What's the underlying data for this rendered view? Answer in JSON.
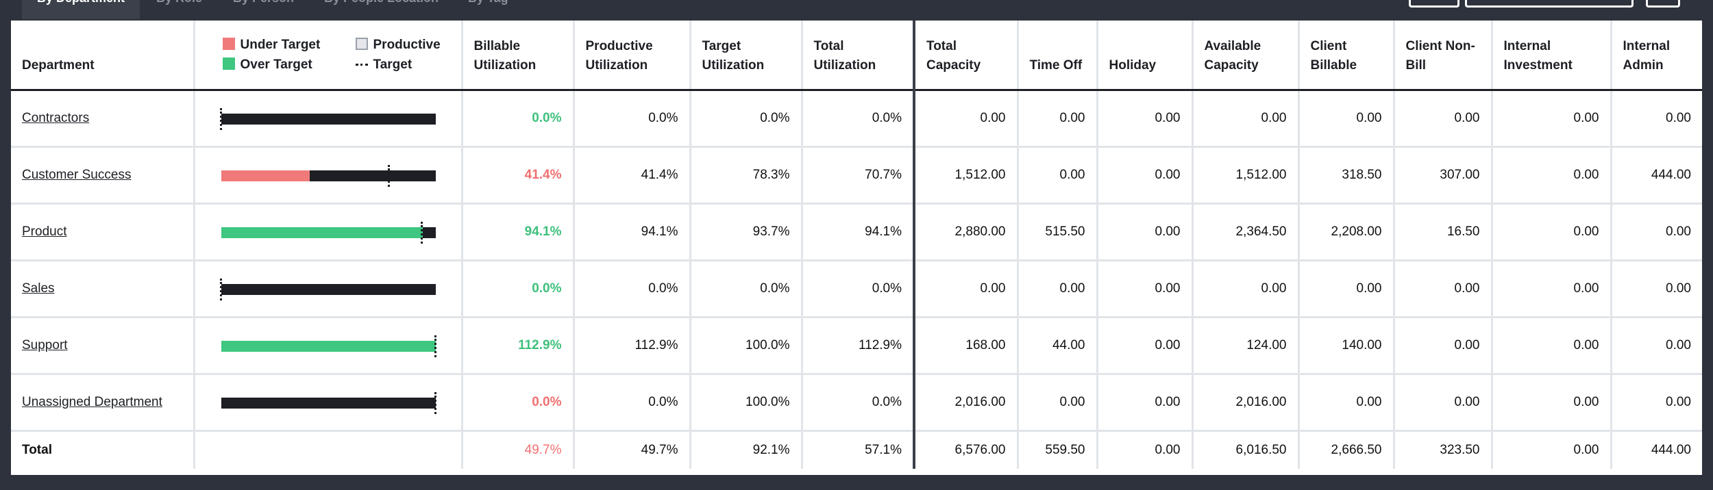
{
  "tabs": [
    "By Department",
    "By Role",
    "By Person",
    "By People Location",
    "By Tag"
  ],
  "colors": {
    "under": "#f07a7a",
    "over": "#3fc781",
    "productive": "#e4e6ea",
    "bar_base": "#1d1f24"
  },
  "legend": {
    "under": "Under Target",
    "productive": "Productive",
    "over": "Over Target",
    "target": "Target"
  },
  "headers": {
    "department": "Department",
    "billable": "Billable Utilization",
    "productive": "Productive Utilization",
    "target": "Target Utilization",
    "total_util": "Total Utilization",
    "total_cap": "Total Capacity",
    "time_off": "Time Off",
    "holiday": "Holiday",
    "avail": "Available Capacity",
    "client_bill": "Client Billable",
    "client_nonbill": "Client Non-Bill",
    "internal_inv": "Internal Investment",
    "internal_admin": "Internal Admin"
  },
  "rows": [
    {
      "name": "Contractors",
      "billable": "0.0%",
      "status": "over",
      "fill_pct": 0,
      "target_pct": 0,
      "productive": "0.0%",
      "target": "0.0%",
      "total_util": "0.0%",
      "total_cap": "0.00",
      "time_off": "0.00",
      "holiday": "0.00",
      "avail": "0.00",
      "client_bill": "0.00",
      "client_nonbill": "0.00",
      "internal_inv": "0.00",
      "internal_admin": "0.00"
    },
    {
      "name": "Customer Success",
      "billable": "41.4%",
      "status": "under",
      "fill_pct": 41.4,
      "target_pct": 78.3,
      "productive": "41.4%",
      "target": "78.3%",
      "total_util": "70.7%",
      "total_cap": "1,512.00",
      "time_off": "0.00",
      "holiday": "0.00",
      "avail": "1,512.00",
      "client_bill": "318.50",
      "client_nonbill": "307.00",
      "internal_inv": "0.00",
      "internal_admin": "444.00"
    },
    {
      "name": "Product",
      "billable": "94.1%",
      "status": "over",
      "fill_pct": 94.1,
      "target_pct": 93.7,
      "productive": "94.1%",
      "target": "93.7%",
      "total_util": "94.1%",
      "total_cap": "2,880.00",
      "time_off": "515.50",
      "holiday": "0.00",
      "avail": "2,364.50",
      "client_bill": "2,208.00",
      "client_nonbill": "16.50",
      "internal_inv": "0.00",
      "internal_admin": "0.00"
    },
    {
      "name": "Sales",
      "billable": "0.0%",
      "status": "over",
      "fill_pct": 0,
      "target_pct": 0,
      "productive": "0.0%",
      "target": "0.0%",
      "total_util": "0.0%",
      "total_cap": "0.00",
      "time_off": "0.00",
      "holiday": "0.00",
      "avail": "0.00",
      "client_bill": "0.00",
      "client_nonbill": "0.00",
      "internal_inv": "0.00",
      "internal_admin": "0.00"
    },
    {
      "name": "Support",
      "billable": "112.9%",
      "status": "over",
      "fill_pct": 100,
      "target_pct": 100,
      "productive": "112.9%",
      "target": "100.0%",
      "total_util": "112.9%",
      "total_cap": "168.00",
      "time_off": "44.00",
      "holiday": "0.00",
      "avail": "124.00",
      "client_bill": "140.00",
      "client_nonbill": "0.00",
      "internal_inv": "0.00",
      "internal_admin": "0.00"
    },
    {
      "name": "Unassigned Department",
      "billable": "0.0%",
      "status": "under",
      "fill_pct": 0,
      "target_pct": 100,
      "productive": "0.0%",
      "target": "100.0%",
      "total_util": "0.0%",
      "total_cap": "2,016.00",
      "time_off": "0.00",
      "holiday": "0.00",
      "avail": "2,016.00",
      "client_bill": "0.00",
      "client_nonbill": "0.00",
      "internal_inv": "0.00",
      "internal_admin": "0.00"
    }
  ],
  "total": {
    "name": "Total",
    "billable": "49.7%",
    "status": "under",
    "productive": "49.7%",
    "target": "92.1%",
    "total_util": "57.1%",
    "total_cap": "6,576.00",
    "time_off": "559.50",
    "holiday": "0.00",
    "avail": "6,016.50",
    "client_bill": "2,666.50",
    "client_nonbill": "323.50",
    "internal_inv": "0.00",
    "internal_admin": "444.00"
  }
}
